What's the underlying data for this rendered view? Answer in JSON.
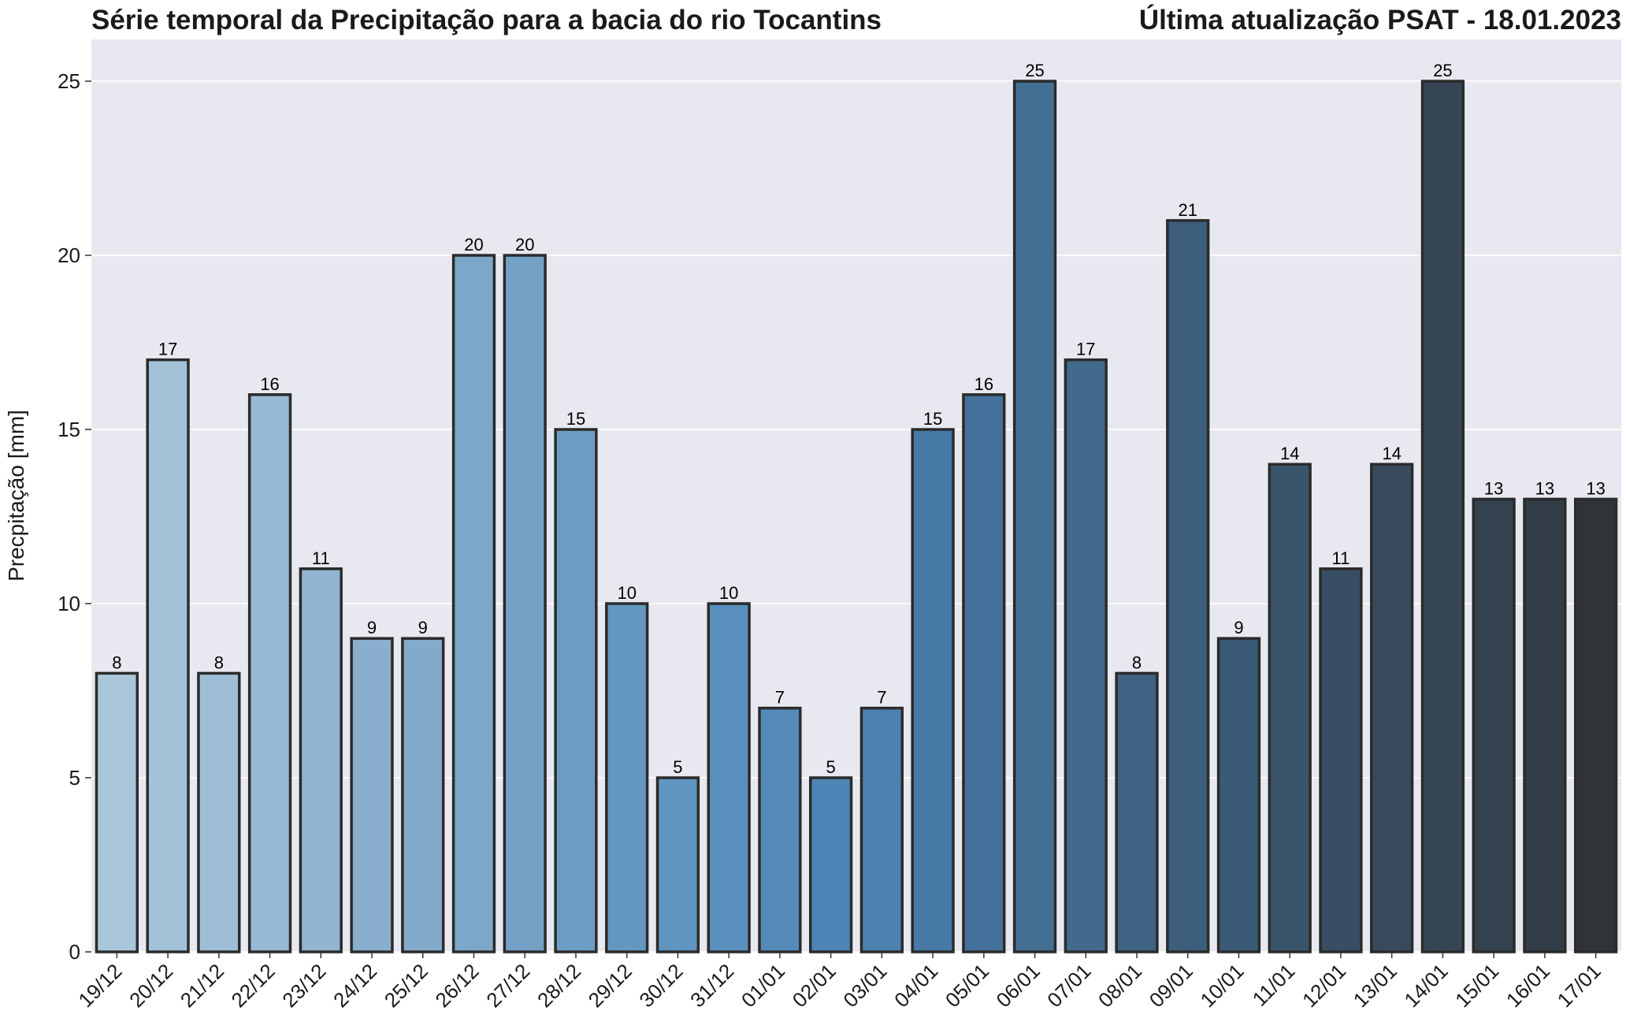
{
  "chart_data": {
    "type": "bar",
    "title": "Série temporal da Precipitação para a bacia do rio Tocantins",
    "subtitle": "Última atualização PSAT - 18.01.2023",
    "xlabel": "",
    "ylabel": "Precpitação [mm]",
    "ylim": [
      0,
      26.2
    ],
    "yticks": [
      0,
      5,
      10,
      15,
      20,
      25
    ],
    "grid": true,
    "categories": [
      "19/12",
      "20/12",
      "21/12",
      "22/12",
      "23/12",
      "24/12",
      "25/12",
      "26/12",
      "27/12",
      "28/12",
      "29/12",
      "30/12",
      "31/12",
      "01/01",
      "02/01",
      "03/01",
      "04/01",
      "05/01",
      "06/01",
      "07/01",
      "08/01",
      "09/01",
      "10/01",
      "11/01",
      "12/01",
      "13/01",
      "14/01",
      "15/01",
      "16/01",
      "17/01"
    ],
    "values": [
      8,
      17,
      8,
      16,
      11,
      9,
      9,
      20,
      20,
      15,
      10,
      5,
      10,
      7,
      5,
      7,
      15,
      16,
      25,
      17,
      8,
      21,
      9,
      14,
      11,
      14,
      25,
      13,
      13,
      13
    ],
    "data_labels": [
      "8",
      "17",
      "8",
      "16",
      "11",
      "9",
      "9",
      "20",
      "20",
      "15",
      "10",
      "5",
      "10",
      "7",
      "5",
      "7",
      "15",
      "16",
      "25",
      "17",
      "8",
      "21",
      "9",
      "14",
      "11",
      "14",
      "25",
      "13",
      "13",
      "13"
    ],
    "colors": [
      "#aac6da",
      "#a3c2d8",
      "#9fbed6",
      "#98b9d3",
      "#91b4d0",
      "#8aaecd",
      "#83aaca",
      "#7ca7c9",
      "#74a2c6",
      "#6c9dc3",
      "#6498c0",
      "#5f95bf",
      "#598fbc",
      "#5489b8",
      "#4d86b6",
      "#4c80ae",
      "#4679a6",
      "#44719b",
      "#437092",
      "#416a8d",
      "#406384",
      "#3c5e7b",
      "#3b5a75",
      "#3a546b",
      "#394e62",
      "#384a5c",
      "#364553",
      "#34414e",
      "#333d48",
      "#303438"
    ],
    "plot_background": "#e8e8f0",
    "grid_color": "#ffffff",
    "edge_color": "#2b2b2b"
  }
}
